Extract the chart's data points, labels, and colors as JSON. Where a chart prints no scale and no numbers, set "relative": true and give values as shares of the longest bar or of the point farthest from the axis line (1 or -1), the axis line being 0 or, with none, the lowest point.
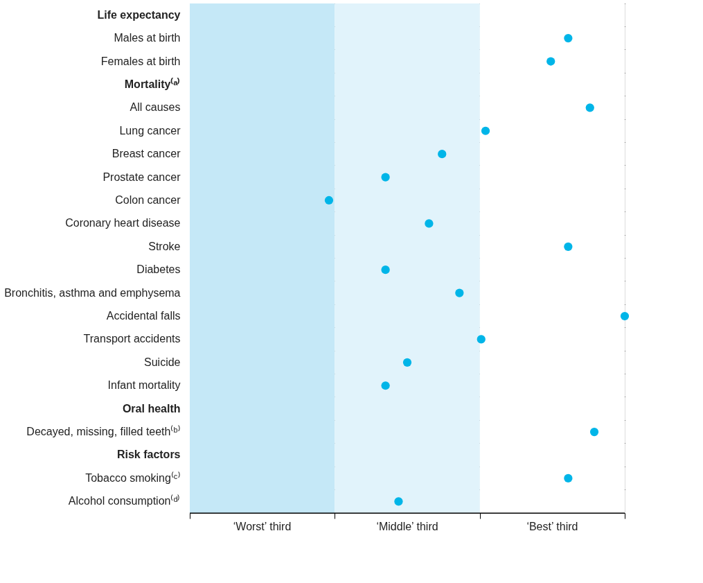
{
  "chart_data": {
    "type": "scatter",
    "orientation": "horizontal",
    "relative": true,
    "categories": [
      "Life expectancy",
      "Males at birth",
      "Females at birth",
      "Mortality⁽ᵃ⁾",
      "All causes",
      "Lung cancer",
      "Breast cancer",
      "Prostate cancer",
      "Colon cancer",
      "Coronary heart disease",
      "Stroke",
      "Diabetes",
      "Bronchitis, asthma and emphysema",
      "Accidental falls",
      "Transport accidents",
      "Suicide",
      "Infant mortality",
      "Oral health",
      "Decayed, missing, filled teeth⁽ᵇ⁾",
      "Risk factors",
      "Tobacco smoking⁽ᶜ⁾",
      "Alcohol consumption⁽ᵈ⁾"
    ],
    "series": [
      {
        "color": "#00b5e8",
        "values": [
          null,
          0.87,
          0.83,
          null,
          0.92,
          0.68,
          0.58,
          0.45,
          0.32,
          0.55,
          0.87,
          0.45,
          0.62,
          1,
          0.67,
          0.5,
          0.45,
          null,
          0.93,
          null,
          0.87,
          0.48
        ]
      }
    ],
    "bands": [
      {
        "axis": "x",
        "from": 0,
        "to": 0.333,
        "label": "‘Worst’ third",
        "color": "#c5e8f7"
      },
      {
        "axis": "x",
        "from": 0.333,
        "to": 0.667,
        "label": "‘Middle’ third",
        "color": "#e1f3fb"
      },
      {
        "axis": "x",
        "from": 0.667,
        "to": 1,
        "label": "‘Best’ third",
        "color": "#ffffff"
      }
    ],
    "grid": "y",
    "marker": "circle"
  }
}
